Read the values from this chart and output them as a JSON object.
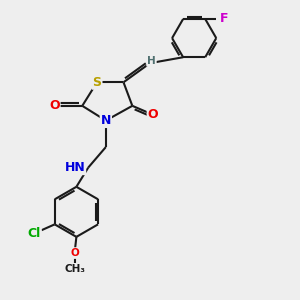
{
  "bg_color": "#eeeeee",
  "bond_color": "#1a1a1a",
  "bond_width": 1.5,
  "dbo": 0.08,
  "atom_colors": {
    "S": "#b8a000",
    "O": "#ee0000",
    "N": "#0000dd",
    "Cl": "#00aa00",
    "F": "#cc00cc",
    "H": "#507070",
    "C": "#1a1a1a"
  },
  "fs": 9,
  "sfs": 7.5
}
